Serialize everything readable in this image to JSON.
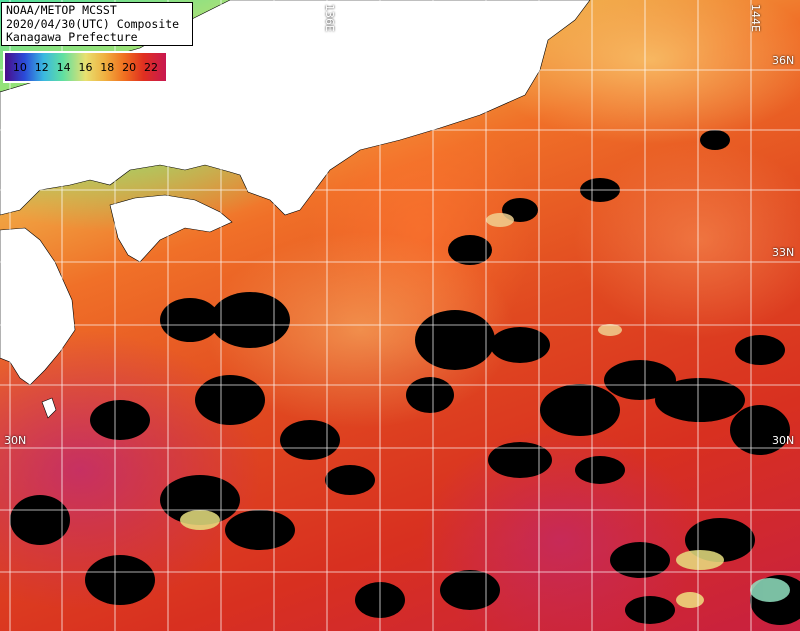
{
  "header": {
    "line1": "NOAA/METOP MCSST",
    "line2": "2020/04/30(UTC) Composite",
    "line3": "Kanagawa Prefecture"
  },
  "legend": {
    "values": [
      "10",
      "12",
      "14",
      "16",
      "18",
      "20",
      "22"
    ],
    "colors": [
      "#4a0d8a",
      "#2a4ad8",
      "#3ab8e0",
      "#60e0a0",
      "#e8e070",
      "#f0b040",
      "#f07020",
      "#e03020",
      "#c81850"
    ]
  },
  "grid": {
    "lat_labels": [
      "36N",
      "33N",
      "30N"
    ],
    "lon_labels": [
      "136E",
      "144E"
    ]
  },
  "colors": {
    "land": "#ffffff",
    "cloud": "#000000",
    "gridline": "#ffffff"
  }
}
